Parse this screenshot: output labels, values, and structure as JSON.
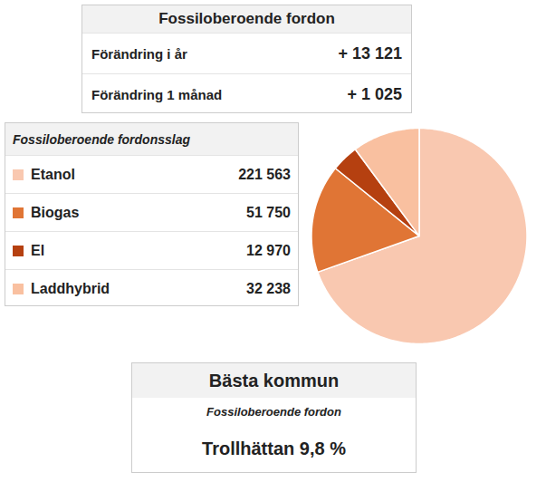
{
  "chart_data": {
    "type": "pie",
    "title": "Fossiloberoende fordon",
    "categories": [
      "Etanol",
      "Biogas",
      "El",
      "Laddhybrid"
    ],
    "values": [
      221563,
      51750,
      12970,
      32238
    ],
    "value_labels": [
      "221 563",
      "51 750",
      "12 970",
      "32 238"
    ],
    "colors": [
      "#f9c8b0",
      "#e07535",
      "#b54010",
      "#f9c0a0"
    ],
    "annotations": [
      [
        "Förändring i år",
        "+ 13 121"
      ],
      [
        "Förändring 1 månad",
        "+ 1 025"
      ],
      [
        "Fossiloberoende fordonsslag"
      ],
      [
        "Bästa kommun",
        "Fossiloberoende fordon",
        "Trollhättan 9,8 %"
      ]
    ]
  }
}
